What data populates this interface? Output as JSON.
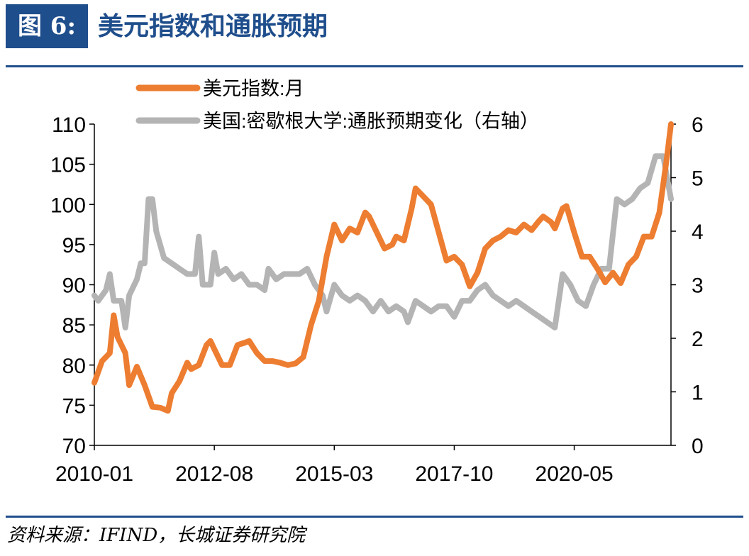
{
  "figure": {
    "label": "图 6:",
    "title": "美元指数和通胀预期",
    "source": "资料来源：IFIND，长城证券研究院"
  },
  "colors": {
    "accent": "#1f4e8c",
    "series1": "#ed7d31",
    "series2": "#b4b4b4",
    "axis": "#000000"
  },
  "chart_data": {
    "type": "line",
    "title": "",
    "xlabel": "",
    "ylabel": "",
    "y2label": "",
    "x_tick_labels": [
      "2010-01",
      "2012-08",
      "2015-03",
      "2017-10",
      "2020-05"
    ],
    "x_range": [
      "2010-01",
      "2022-06"
    ],
    "ylim": [
      70,
      110
    ],
    "y_ticks": [
      70,
      75,
      80,
      85,
      90,
      95,
      100,
      105,
      110
    ],
    "y2lim": [
      0,
      6
    ],
    "y2_ticks": [
      0,
      1,
      2,
      3,
      4,
      5,
      6
    ],
    "grid": false,
    "legend_position": "top",
    "series": [
      {
        "name": "美元指数:月",
        "axis": "left",
        "color": "#ed7d31",
        "points": [
          [
            "2010-01",
            77.8
          ],
          [
            "2010-03",
            80.5
          ],
          [
            "2010-05",
            81.5
          ],
          [
            "2010-06",
            86.2
          ],
          [
            "2010-07",
            83.5
          ],
          [
            "2010-09",
            81.5
          ],
          [
            "2010-10",
            77.5
          ],
          [
            "2010-12",
            79.8
          ],
          [
            "2011-02",
            77.5
          ],
          [
            "2011-04",
            74.8
          ],
          [
            "2011-06",
            74.7
          ],
          [
            "2011-08",
            74.3
          ],
          [
            "2011-09",
            76.5
          ],
          [
            "2011-11",
            78.0
          ],
          [
            "2012-01",
            80.3
          ],
          [
            "2012-02",
            79.5
          ],
          [
            "2012-04",
            80.0
          ],
          [
            "2012-06",
            82.5
          ],
          [
            "2012-07",
            83.0
          ],
          [
            "2012-08",
            82.0
          ],
          [
            "2012-10",
            80.0
          ],
          [
            "2012-12",
            80.0
          ],
          [
            "2013-02",
            82.5
          ],
          [
            "2013-04",
            82.8
          ],
          [
            "2013-05",
            83.0
          ],
          [
            "2013-07",
            81.5
          ],
          [
            "2013-09",
            80.5
          ],
          [
            "2013-11",
            80.5
          ],
          [
            "2014-01",
            80.3
          ],
          [
            "2014-03",
            80.0
          ],
          [
            "2014-05",
            80.2
          ],
          [
            "2014-07",
            81.0
          ],
          [
            "2014-09",
            85.0
          ],
          [
            "2014-11",
            88.0
          ],
          [
            "2015-01",
            93.5
          ],
          [
            "2015-03",
            97.5
          ],
          [
            "2015-05",
            95.5
          ],
          [
            "2015-07",
            97.0
          ],
          [
            "2015-09",
            96.5
          ],
          [
            "2015-11",
            99.0
          ],
          [
            "2015-12",
            98.5
          ],
          [
            "2016-02",
            96.5
          ],
          [
            "2016-04",
            94.5
          ],
          [
            "2016-06",
            95.0
          ],
          [
            "2016-07",
            96.0
          ],
          [
            "2016-09",
            95.5
          ],
          [
            "2016-11",
            99.5
          ],
          [
            "2016-12",
            102.0
          ],
          [
            "2017-02",
            101.0
          ],
          [
            "2017-04",
            100.0
          ],
          [
            "2017-06",
            96.5
          ],
          [
            "2017-08",
            93.0
          ],
          [
            "2017-10",
            93.5
          ],
          [
            "2017-12",
            92.5
          ],
          [
            "2018-02",
            89.8
          ],
          [
            "2018-04",
            91.5
          ],
          [
            "2018-06",
            94.5
          ],
          [
            "2018-08",
            95.5
          ],
          [
            "2018-10",
            96.0
          ],
          [
            "2018-12",
            96.8
          ],
          [
            "2019-02",
            96.5
          ],
          [
            "2019-04",
            97.5
          ],
          [
            "2019-06",
            96.8
          ],
          [
            "2019-08",
            98.0
          ],
          [
            "2019-09",
            98.5
          ],
          [
            "2019-11",
            97.8
          ],
          [
            "2019-12",
            97.0
          ],
          [
            "2020-02",
            99.5
          ],
          [
            "2020-03",
            99.8
          ],
          [
            "2020-05",
            96.5
          ],
          [
            "2020-07",
            93.5
          ],
          [
            "2020-09",
            93.5
          ],
          [
            "2020-11",
            92.0
          ],
          [
            "2021-01",
            90.3
          ],
          [
            "2021-03",
            91.5
          ],
          [
            "2021-05",
            90.2
          ],
          [
            "2021-07",
            92.5
          ],
          [
            "2021-09",
            93.5
          ],
          [
            "2021-11",
            96.0
          ],
          [
            "2022-01",
            96.0
          ],
          [
            "2022-03",
            99.0
          ],
          [
            "2022-05",
            106.0
          ],
          [
            "2022-06",
            110.0
          ]
        ]
      },
      {
        "name": "美国:密歇根大学:通胀预期变化（右轴）",
        "axis": "right",
        "color": "#b4b4b4",
        "points": [
          [
            "2010-01",
            2.8
          ],
          [
            "2010-02",
            2.7
          ],
          [
            "2010-04",
            2.9
          ],
          [
            "2010-05",
            3.2
          ],
          [
            "2010-06",
            2.7
          ],
          [
            "2010-08",
            2.7
          ],
          [
            "2010-09",
            2.2
          ],
          [
            "2010-10",
            2.8
          ],
          [
            "2010-12",
            3.1
          ],
          [
            "2011-01",
            3.4
          ],
          [
            "2011-02",
            3.4
          ],
          [
            "2011-03",
            4.6
          ],
          [
            "2011-04",
            4.6
          ],
          [
            "2011-05",
            4.0
          ],
          [
            "2011-07",
            3.5
          ],
          [
            "2011-09",
            3.4
          ],
          [
            "2011-11",
            3.3
          ],
          [
            "2012-01",
            3.2
          ],
          [
            "2012-03",
            3.2
          ],
          [
            "2012-04",
            3.9
          ],
          [
            "2012-05",
            3.0
          ],
          [
            "2012-07",
            3.0
          ],
          [
            "2012-08",
            3.6
          ],
          [
            "2012-09",
            3.2
          ],
          [
            "2012-11",
            3.3
          ],
          [
            "2013-01",
            3.1
          ],
          [
            "2013-03",
            3.2
          ],
          [
            "2013-05",
            3.0
          ],
          [
            "2013-07",
            3.0
          ],
          [
            "2013-09",
            2.9
          ],
          [
            "2013-10",
            3.3
          ],
          [
            "2013-12",
            3.1
          ],
          [
            "2014-02",
            3.2
          ],
          [
            "2014-04",
            3.2
          ],
          [
            "2014-06",
            3.2
          ],
          [
            "2014-08",
            3.3
          ],
          [
            "2014-10",
            3.0
          ],
          [
            "2014-12",
            2.8
          ],
          [
            "2015-01",
            2.5
          ],
          [
            "2015-03",
            3.0
          ],
          [
            "2015-05",
            2.8
          ],
          [
            "2015-07",
            2.7
          ],
          [
            "2015-09",
            2.8
          ],
          [
            "2015-11",
            2.7
          ],
          [
            "2016-01",
            2.5
          ],
          [
            "2016-03",
            2.7
          ],
          [
            "2016-05",
            2.5
          ],
          [
            "2016-07",
            2.6
          ],
          [
            "2016-09",
            2.5
          ],
          [
            "2016-10",
            2.3
          ],
          [
            "2016-12",
            2.7
          ],
          [
            "2017-02",
            2.6
          ],
          [
            "2017-04",
            2.5
          ],
          [
            "2017-06",
            2.6
          ],
          [
            "2017-08",
            2.6
          ],
          [
            "2017-10",
            2.4
          ],
          [
            "2017-12",
            2.7
          ],
          [
            "2018-02",
            2.7
          ],
          [
            "2018-04",
            2.9
          ],
          [
            "2018-06",
            3.0
          ],
          [
            "2018-08",
            2.8
          ],
          [
            "2018-10",
            2.7
          ],
          [
            "2018-12",
            2.6
          ],
          [
            "2019-02",
            2.7
          ],
          [
            "2019-04",
            2.6
          ],
          [
            "2019-06",
            2.5
          ],
          [
            "2019-08",
            2.4
          ],
          [
            "2019-10",
            2.3
          ],
          [
            "2019-12",
            2.2
          ],
          [
            "2020-02",
            3.2
          ],
          [
            "2020-04",
            3.0
          ],
          [
            "2020-06",
            2.7
          ],
          [
            "2020-08",
            2.6
          ],
          [
            "2020-10",
            3.0
          ],
          [
            "2020-12",
            3.3
          ],
          [
            "2021-02",
            3.3
          ],
          [
            "2021-04",
            4.6
          ],
          [
            "2021-06",
            4.5
          ],
          [
            "2021-08",
            4.6
          ],
          [
            "2021-10",
            4.8
          ],
          [
            "2021-12",
            4.9
          ],
          [
            "2022-02",
            5.4
          ],
          [
            "2022-04",
            5.4
          ],
          [
            "2022-06",
            4.6
          ]
        ]
      }
    ]
  }
}
